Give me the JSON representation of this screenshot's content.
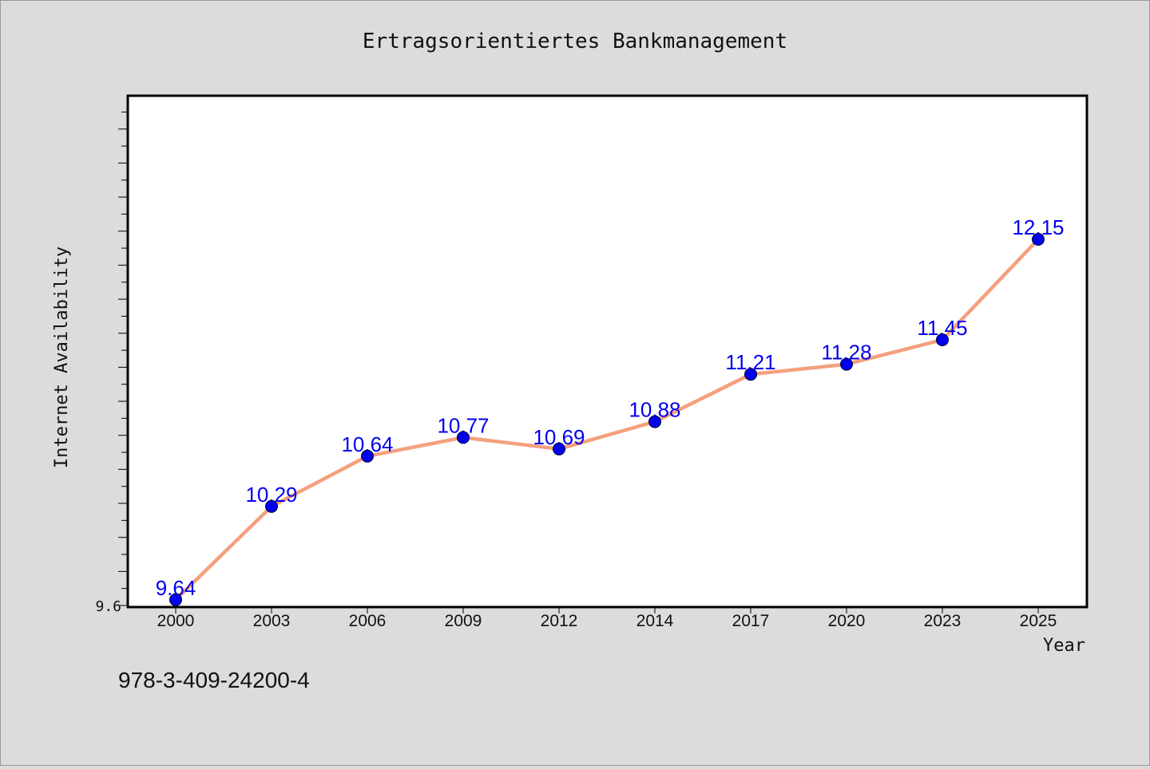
{
  "chart_data": {
    "type": "line",
    "title": "Ertragsorientiertes Bankmanagement",
    "xlabel": "Year",
    "ylabel": "Internet Availability",
    "categories": [
      "2000",
      "2003",
      "2006",
      "2009",
      "2012",
      "2014",
      "2017",
      "2020",
      "2023",
      "2025"
    ],
    "series": [
      {
        "values": [
          9.64,
          10.29,
          10.64,
          10.77,
          10.69,
          10.88,
          11.21,
          11.28,
          11.45,
          12.15
        ]
      }
    ],
    "data_labels": [
      "9.64",
      "10.29",
      "10.64",
      "10.77",
      "10.69",
      "10.88",
      "11.21",
      "11.28",
      "11.45",
      "12.15"
    ],
    "y_tick_label": "9.6",
    "ylim": [
      9.6,
      12.6
    ],
    "grid": false,
    "line_color": "#f4a07f",
    "marker_color": "#0000ee",
    "label_color": "#0000ee"
  },
  "footer_text": "978-3-409-24200-4"
}
